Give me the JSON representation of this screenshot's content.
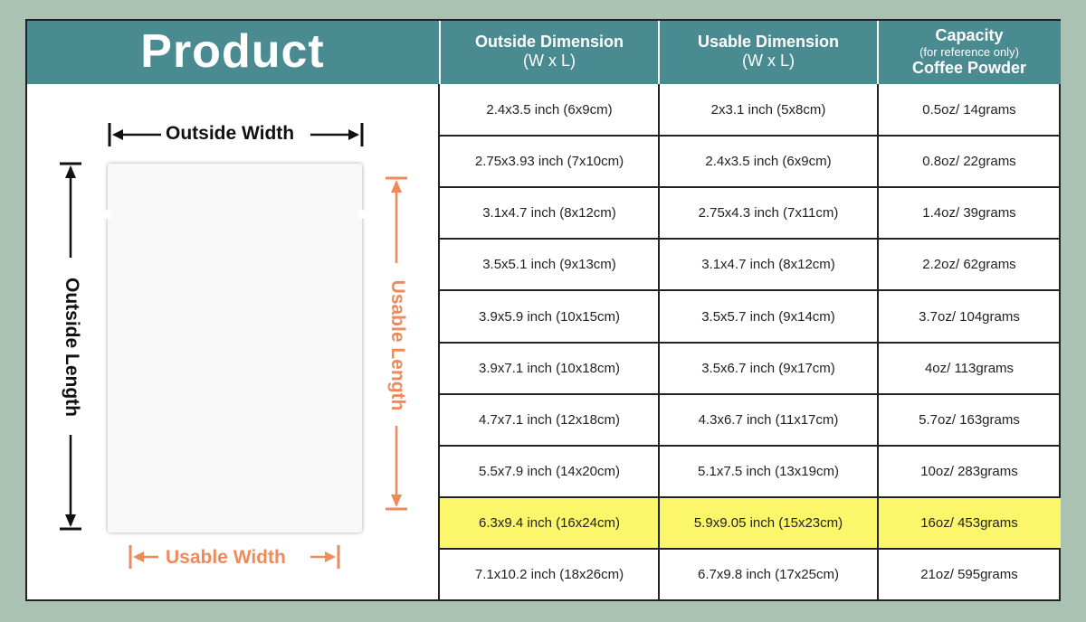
{
  "header": {
    "product": "Product",
    "outside": [
      "Outside Dimension",
      "(W x L)"
    ],
    "usable": [
      "Usable Dimension",
      "(W x L)"
    ],
    "capacity": [
      "Capacity",
      "(for reference only)",
      "Coffee Powder"
    ]
  },
  "diagram": {
    "outside_width": "Outside Width",
    "outside_length": "Outside Length",
    "usable_width": "Usable Width",
    "usable_length": "Usable Length"
  },
  "colors": {
    "header_bg": "#4a8a91",
    "highlight": "#fbf66a",
    "usable_accent": "#ef8a5c",
    "page_bg": "#a9c2b4"
  },
  "rows": [
    {
      "outside": "2.4x3.5 inch (6x9cm)",
      "usable": "2x3.1 inch (5x8cm)",
      "capacity": "0.5oz/ 14grams",
      "highlight": false
    },
    {
      "outside": "2.75x3.93 inch (7x10cm)",
      "usable": "2.4x3.5 inch (6x9cm)",
      "capacity": "0.8oz/ 22grams",
      "highlight": false
    },
    {
      "outside": "3.1x4.7 inch (8x12cm)",
      "usable": "2.75x4.3 inch (7x11cm)",
      "capacity": "1.4oz/ 39grams",
      "highlight": false
    },
    {
      "outside": "3.5x5.1 inch (9x13cm)",
      "usable": "3.1x4.7 inch (8x12cm)",
      "capacity": "2.2oz/ 62grams",
      "highlight": false
    },
    {
      "outside": "3.9x5.9 inch (10x15cm)",
      "usable": "3.5x5.7 inch (9x14cm)",
      "capacity": "3.7oz/ 104grams",
      "highlight": false
    },
    {
      "outside": "3.9x7.1 inch (10x18cm)",
      "usable": "3.5x6.7 inch (9x17cm)",
      "capacity": "4oz/ 113grams",
      "highlight": false
    },
    {
      "outside": "4.7x7.1 inch (12x18cm)",
      "usable": "4.3x6.7 inch (11x17cm)",
      "capacity": "5.7oz/ 163grams",
      "highlight": false
    },
    {
      "outside": "5.5x7.9 inch (14x20cm)",
      "usable": "5.1x7.5 inch (13x19cm)",
      "capacity": "10oz/ 283grams",
      "highlight": false
    },
    {
      "outside": "6.3x9.4 inch (16x24cm)",
      "usable": "5.9x9.05 inch (15x23cm)",
      "capacity": "16oz/ 453grams",
      "highlight": true
    },
    {
      "outside": "7.1x10.2 inch (18x26cm)",
      "usable": "6.7x9.8 inch (17x25cm)",
      "capacity": "21oz/ 595grams",
      "highlight": false
    }
  ]
}
